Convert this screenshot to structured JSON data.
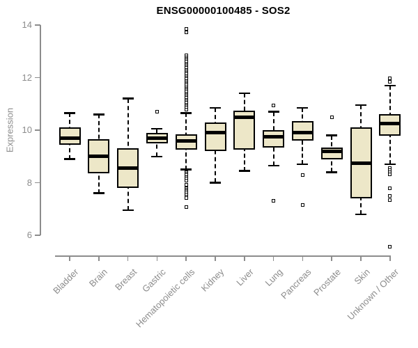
{
  "colors": {
    "background": "#FFFFFF",
    "box_fill": "#EDE7C8",
    "box_border": "#000000",
    "median": "#000000",
    "whisker": "#000000",
    "axis": "#8C8C8C",
    "tick_text": "#8C8C8C",
    "title_text": "#000000"
  },
  "chart_data": {
    "type": "boxplot",
    "title": "ENSG00000100485 - SOS2",
    "ylabel": "Expression",
    "xlabel": "",
    "ylim": [
      6,
      14
    ],
    "yticks": [
      6,
      8,
      10,
      12,
      14
    ],
    "grid": false,
    "categories": [
      "Bladder",
      "Brain",
      "Breast",
      "Gastric",
      "Hematopoietic cells",
      "Kidney",
      "Liver",
      "Lung",
      "Pancreas",
      "Prostate",
      "Skin",
      "Unknown / Other"
    ],
    "boxes": [
      {
        "label": "Bladder",
        "low": 8.9,
        "q1": 9.45,
        "median": 9.7,
        "q3": 10.1,
        "high": 10.65,
        "outliers": []
      },
      {
        "label": "Brain",
        "low": 7.6,
        "q1": 8.35,
        "median": 9.0,
        "q3": 9.65,
        "high": 10.6,
        "outliers": []
      },
      {
        "label": "Breast",
        "low": 6.95,
        "q1": 7.8,
        "median": 8.55,
        "q3": 9.3,
        "high": 11.2,
        "outliers": []
      },
      {
        "label": "Gastric",
        "low": 9.0,
        "q1": 9.5,
        "median": 9.7,
        "q3": 9.9,
        "high": 10.05,
        "outliers": [
          10.7
        ]
      },
      {
        "label": "Hematopoietic cells",
        "low": 8.5,
        "q1": 9.25,
        "median": 9.6,
        "q3": 9.85,
        "high": 10.65,
        "outliers": [
          13.85,
          13.72,
          12.85,
          12.78,
          12.72,
          12.66,
          12.6,
          12.54,
          12.48,
          12.42,
          12.36,
          12.3,
          12.24,
          12.18,
          12.12,
          12.06,
          12.0,
          11.94,
          11.88,
          11.82,
          11.76,
          11.7,
          11.64,
          11.58,
          11.52,
          11.46,
          11.4,
          11.34,
          11.28,
          11.22,
          11.16,
          11.1,
          11.04,
          10.98,
          10.92,
          10.85,
          10.78,
          8.4,
          8.34,
          8.28,
          8.22,
          8.16,
          8.08,
          7.93,
          7.8,
          7.74,
          7.68,
          7.62,
          7.56,
          7.48,
          7.42,
          7.08
        ]
      },
      {
        "label": "Kidney",
        "low": 8.0,
        "q1": 9.2,
        "median": 9.9,
        "q3": 10.3,
        "high": 10.85,
        "outliers": []
      },
      {
        "label": "Liver",
        "low": 8.45,
        "q1": 9.25,
        "median": 10.5,
        "q3": 10.75,
        "high": 11.4,
        "outliers": []
      },
      {
        "label": "Lung",
        "low": 8.65,
        "q1": 9.35,
        "median": 9.75,
        "q3": 10.0,
        "high": 10.7,
        "outliers": [
          10.95,
          7.3
        ]
      },
      {
        "label": "Pancreas",
        "low": 8.7,
        "q1": 9.6,
        "median": 9.9,
        "q3": 10.35,
        "high": 10.85,
        "outliers": [
          8.3,
          7.15
        ]
      },
      {
        "label": "Prostate",
        "low": 8.4,
        "q1": 8.9,
        "median": 9.2,
        "q3": 9.35,
        "high": 9.8,
        "outliers": [
          10.5
        ]
      },
      {
        "label": "Skin",
        "low": 6.8,
        "q1": 7.4,
        "median": 8.75,
        "q3": 10.1,
        "high": 10.95,
        "outliers": []
      },
      {
        "label": "Unknown / Other",
        "low": 8.7,
        "q1": 9.8,
        "median": 10.25,
        "q3": 10.6,
        "high": 11.7,
        "outliers": [
          11.97,
          11.85,
          8.55,
          8.47,
          8.39,
          8.31,
          7.8,
          7.49,
          7.35,
          5.55
        ]
      }
    ]
  }
}
